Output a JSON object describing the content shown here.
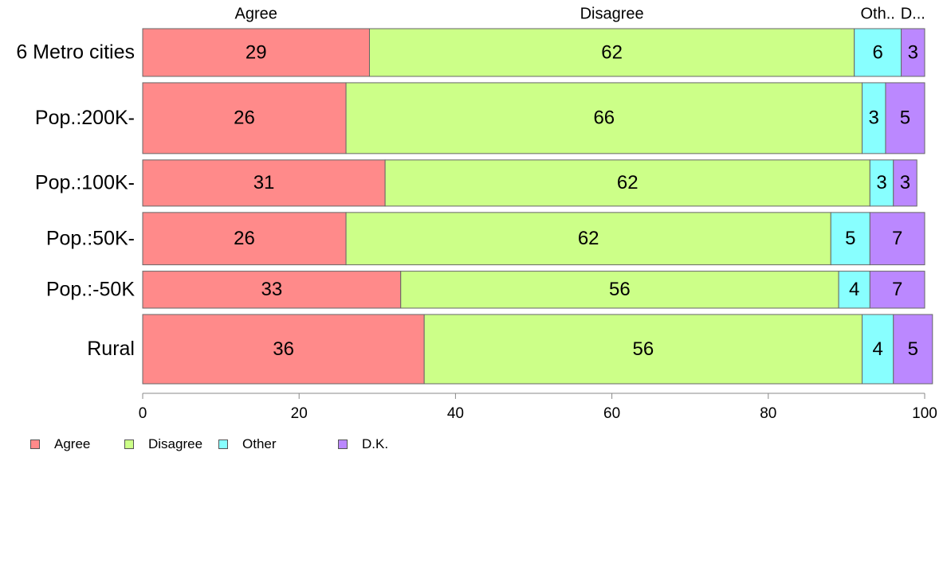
{
  "chart_data": {
    "type": "bar",
    "orientation": "horizontal",
    "stacked": true,
    "categories": [
      "6 Metro cities",
      "Pop.:200K-",
      "Pop.:100K-",
      "Pop.:50K-",
      "Pop.:-50K",
      "Rural"
    ],
    "series": [
      {
        "name": "Agree",
        "color": "#ff8a8a",
        "values": [
          29,
          26,
          31,
          26,
          33,
          36
        ],
        "labels": [
          "29",
          "26",
          "31",
          "26",
          "33",
          "36"
        ]
      },
      {
        "name": "Disagree",
        "color": "#ccff88",
        "values": [
          62,
          66,
          62,
          62,
          56,
          56
        ],
        "labels": [
          "62",
          "66",
          "62",
          "62",
          "56",
          "56"
        ]
      },
      {
        "name": "Other",
        "color": "#88ffff",
        "values": [
          6,
          3,
          3,
          5,
          4,
          4
        ],
        "labels": [
          "6",
          "3",
          "3",
          "5",
          "4",
          "4"
        ]
      },
      {
        "name": "D.K.",
        "color": "#bb88ff",
        "values": [
          3,
          5,
          3,
          7,
          7,
          5
        ],
        "labels": [
          "3",
          "5",
          "3",
          "7",
          "7",
          "5"
        ]
      }
    ],
    "row_weights": [
      62,
      92,
      60,
      68,
      48,
      90
    ],
    "top_labels": [
      "Agree",
      "Disagree",
      "Oth..",
      "D..."
    ],
    "xlim": [
      0,
      100
    ],
    "x_ticks": [
      "0",
      "20",
      "40",
      "60",
      "80",
      "100"
    ],
    "legend": {
      "position": "bottom-left",
      "labels": [
        "Agree",
        "Disagree",
        "Other",
        "D.K."
      ]
    },
    "grid": false
  }
}
